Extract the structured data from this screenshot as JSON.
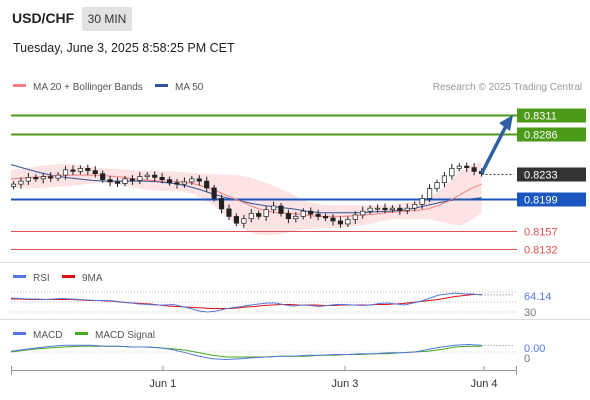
{
  "header": {
    "pair": "USD/CHF",
    "timeframe": "30 MIN",
    "datetime": "Tuesday, June 3, 2025 8:58:25 PM CET"
  },
  "legend": {
    "ma20_label": "MA 20 + Bollinger Bands",
    "ma50_label": "MA 50",
    "credit": "Research © 2025 Trading Central",
    "colors": {
      "ma20": "#f08080",
      "ma50": "#2e5597",
      "rsi": "#5577dd",
      "rsi_ma": "#dd1111",
      "macd": "#5577dd",
      "macd_signal": "#44aa22"
    }
  },
  "chart_data": [
    {
      "type": "candlestick",
      "name": "price",
      "x_range": [
        0,
        100
      ],
      "ylim": [
        0.8122,
        0.8335
      ],
      "levels": [
        {
          "label": "0.8311",
          "value": 0.8311,
          "kind": "resistance",
          "color": "#4c9a1a"
        },
        {
          "label": "0.8286",
          "value": 0.8286,
          "kind": "resistance",
          "color": "#4c9a1a"
        },
        {
          "label": "0.8233",
          "value": 0.8233,
          "kind": "last",
          "color": "#333333"
        },
        {
          "label": "0.8199",
          "value": 0.8199,
          "kind": "pivot",
          "color": "#1a55c0"
        },
        {
          "label": "0.8157",
          "value": 0.8157,
          "kind": "support",
          "color": "#e05050"
        },
        {
          "label": "0.8132",
          "value": 0.8132,
          "kind": "support",
          "color": "#e05050"
        }
      ],
      "close": [
        0.8219,
        0.8223,
        0.8228,
        0.8226,
        0.8229,
        0.8227,
        0.8231,
        0.8238,
        0.8236,
        0.824,
        0.8237,
        0.8233,
        0.8225,
        0.8222,
        0.822,
        0.8226,
        0.8224,
        0.8229,
        0.8231,
        0.8228,
        0.8225,
        0.8221,
        0.8219,
        0.8222,
        0.8226,
        0.8223,
        0.8214,
        0.82,
        0.8186,
        0.8176,
        0.8167,
        0.8173,
        0.818,
        0.8176,
        0.8185,
        0.819,
        0.818,
        0.8173,
        0.8176,
        0.8183,
        0.8179,
        0.8176,
        0.8174,
        0.817,
        0.8166,
        0.8172,
        0.8178,
        0.8183,
        0.8187,
        0.8187,
        0.8185,
        0.8187,
        0.8184,
        0.8187,
        0.8192,
        0.82,
        0.8213,
        0.8221,
        0.823,
        0.824,
        0.8243,
        0.8241,
        0.8236,
        0.8233
      ],
      "ma20": [
        0.8226,
        0.8227,
        0.8228,
        0.8229,
        0.823,
        0.8231,
        0.8231,
        0.8231,
        0.8231,
        0.823,
        0.8229,
        0.8227,
        0.8225,
        0.8224,
        0.8223,
        0.8223,
        0.8222,
        0.822,
        0.8216,
        0.8211,
        0.8205,
        0.8199,
        0.8193,
        0.8187,
        0.8183,
        0.8181,
        0.818,
        0.8179,
        0.8177,
        0.8176,
        0.8176,
        0.8176,
        0.8177,
        0.8178,
        0.8179,
        0.8181,
        0.8182,
        0.8183,
        0.8184,
        0.8186,
        0.8191,
        0.8197,
        0.8205,
        0.8213,
        0.8219
      ],
      "bb_upper": [
        0.8238,
        0.824,
        0.8242,
        0.8244,
        0.8245,
        0.8246,
        0.8245,
        0.8243,
        0.8241,
        0.824,
        0.8239,
        0.8238,
        0.8237,
        0.8237,
        0.8236,
        0.8236,
        0.8235,
        0.8234,
        0.8233,
        0.8232,
        0.8232,
        0.8231,
        0.8229,
        0.8225,
        0.822,
        0.8214,
        0.8208,
        0.82,
        0.8194,
        0.8192,
        0.8191,
        0.8191,
        0.8191,
        0.8191,
        0.8191,
        0.8191,
        0.8192,
        0.8194,
        0.8196,
        0.82,
        0.821,
        0.8222,
        0.8236,
        0.8245,
        0.8249
      ],
      "bb_lower": [
        0.8214,
        0.8214,
        0.8214,
        0.8214,
        0.8215,
        0.8216,
        0.8217,
        0.8219,
        0.8221,
        0.822,
        0.8219,
        0.8216,
        0.8213,
        0.8211,
        0.821,
        0.821,
        0.8209,
        0.8206,
        0.8199,
        0.819,
        0.8178,
        0.8167,
        0.8157,
        0.8152,
        0.8151,
        0.8152,
        0.8155,
        0.8158,
        0.816,
        0.816,
        0.8161,
        0.8161,
        0.8163,
        0.8165,
        0.8167,
        0.8171,
        0.8173,
        0.8172,
        0.8172,
        0.8172,
        0.817,
        0.8166,
        0.8164,
        0.817,
        0.8181
      ],
      "ma50": [
        0.8245,
        0.824,
        0.8235,
        0.8231,
        0.8228,
        0.8226,
        0.8224,
        0.8223,
        0.8223,
        0.8223,
        0.8223,
        0.8222,
        0.822,
        0.8217,
        0.8212,
        0.8206,
        0.8201,
        0.8197,
        0.8193,
        0.819,
        0.8188,
        0.8186,
        0.8183,
        0.8181,
        0.8181,
        0.8181,
        0.8181,
        0.8182,
        0.8183,
        0.8184,
        0.8187,
        0.8191,
        0.8195,
        0.8198,
        0.8199,
        0.8201
      ]
    },
    {
      "type": "line",
      "name": "rsi",
      "legend": [
        "RSI",
        "9MA"
      ],
      "ylim": [
        30,
        70
      ],
      "tick_labels": [
        "64.14",
        "30"
      ],
      "current": 64.14,
      "rsi": [
        58,
        57,
        56,
        56,
        55,
        56,
        57,
        56,
        55,
        54,
        53,
        53,
        52,
        50,
        48,
        46,
        45,
        44,
        44,
        45,
        41,
        37,
        32,
        30,
        32,
        36,
        39,
        41,
        44,
        46,
        48,
        48,
        44,
        42,
        44,
        43,
        41,
        43,
        45,
        45,
        44,
        43,
        44,
        47,
        48,
        46,
        44,
        48,
        52,
        58,
        64,
        66,
        68,
        66,
        66,
        64
      ],
      "rsi_ma": [
        56,
        56,
        55,
        55,
        55,
        55,
        55,
        55,
        54,
        53,
        53,
        52,
        51,
        49,
        48,
        47,
        46,
        44,
        42,
        41,
        40,
        39,
        38,
        37,
        37,
        37,
        38,
        40,
        41,
        43,
        44,
        45,
        45,
        44,
        44,
        44,
        43,
        43,
        44,
        44,
        44,
        44,
        45,
        45,
        46,
        47,
        49,
        51,
        53,
        55,
        58,
        61,
        63,
        65,
        65
      ]
    },
    {
      "type": "line",
      "name": "macd",
      "legend": [
        "MACD",
        "MACD Signal"
      ],
      "ylim": [
        -0.0012,
        0.0012
      ],
      "tick_labels": [
        "0.00",
        "0"
      ],
      "macd": [
        0.0001,
        0.0003,
        0.0005,
        0.0007,
        0.0008,
        0.0008,
        0.0008,
        0.0007,
        0.0007,
        0.0006,
        0.0006,
        0.0005,
        0.0003,
        -0.0001,
        -0.0005,
        -0.0008,
        -0.0009,
        -0.0008,
        -0.0007,
        -0.0006,
        -0.0005,
        -0.0005,
        -0.0004,
        -0.0004,
        -0.0003,
        -0.0003,
        -0.0002,
        -0.0002,
        -0.0001,
        -0.0001,
        0.0,
        0.0003,
        0.0006,
        0.0008,
        0.0009,
        0.0008
      ],
      "macd_signal": [
        0.0,
        0.0002,
        0.0004,
        0.0005,
        0.0006,
        0.0007,
        0.0007,
        0.0007,
        0.0007,
        0.0006,
        0.0006,
        0.0005,
        0.0004,
        0.0002,
        -0.0001,
        -0.0004,
        -0.0006,
        -0.0006,
        -0.0006,
        -0.0006,
        -0.0005,
        -0.0005,
        -0.0005,
        -0.0004,
        -0.0004,
        -0.0003,
        -0.0003,
        -0.0002,
        -0.0002,
        -0.0001,
        0.0,
        0.0001,
        0.0003,
        0.0006,
        0.0007,
        0.0007
      ]
    }
  ],
  "x_axis": {
    "labels": [
      {
        "text": "Jun 1",
        "x": 30
      },
      {
        "text": "Jun 3",
        "x": 66
      },
      {
        "text": "Jun 4",
        "x": 93.5
      }
    ]
  }
}
